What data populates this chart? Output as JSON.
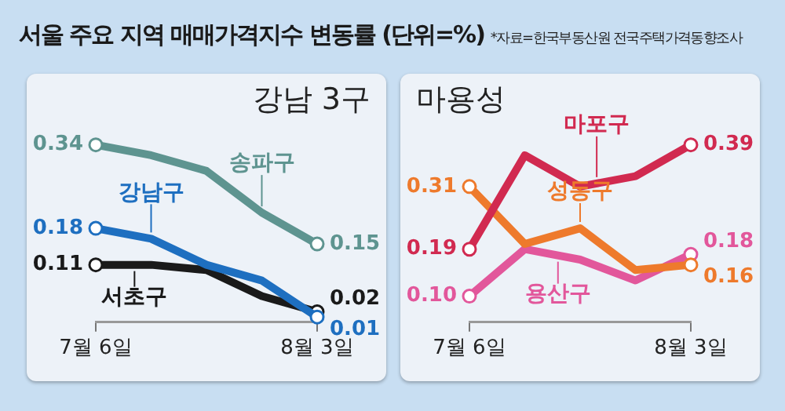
{
  "chart_data": [
    {
      "type": "line",
      "title": "서울 주요 지역 매매가격지수 변동률 (단위=%)",
      "subtitle": "강남 3구",
      "annotations": [
        "*자료=한국부동산원 전국주택가격동향조사"
      ],
      "categories": [
        "7월 6일",
        null,
        null,
        null,
        "8월 3일"
      ],
      "grid": false,
      "series": [
        {
          "name": "송파구",
          "color": "#5e9490",
          "values": [
            0.34,
            0.32,
            0.29,
            0.21,
            0.15
          ],
          "value_labels": [
            "0.34",
            null,
            null,
            null,
            "0.15"
          ]
        },
        {
          "name": "강남구",
          "color": "#1e6fc0",
          "values": [
            0.18,
            0.16,
            0.11,
            0.08,
            0.01
          ],
          "value_labels": [
            "0.18",
            null,
            null,
            null,
            "0.01"
          ]
        },
        {
          "name": "서초구",
          "color": "#1a1a1a",
          "values": [
            0.11,
            0.11,
            0.1,
            0.05,
            0.02
          ],
          "value_labels": [
            "0.11",
            null,
            null,
            null,
            "0.02"
          ]
        }
      ]
    },
    {
      "type": "line",
      "title": "마용성",
      "categories": [
        "7월 6일",
        null,
        null,
        null,
        "8월 3일"
      ],
      "grid": false,
      "series": [
        {
          "name": "마포구",
          "color": "#d12a50",
          "values": [
            0.19,
            0.37,
            0.31,
            0.33,
            0.39
          ],
          "value_labels": [
            "0.19",
            null,
            null,
            null,
            "0.39"
          ]
        },
        {
          "name": "성동구",
          "color": "#ee7a2c",
          "values": [
            0.31,
            0.2,
            0.23,
            0.15,
            0.16
          ],
          "value_labels": [
            "0.31",
            null,
            null,
            null,
            "0.16"
          ]
        },
        {
          "name": "용산구",
          "color": "#e2579b",
          "values": [
            0.1,
            0.19,
            0.17,
            0.13,
            0.18
          ],
          "value_labels": [
            "0.10",
            null,
            null,
            null,
            "0.18"
          ]
        }
      ]
    }
  ]
}
